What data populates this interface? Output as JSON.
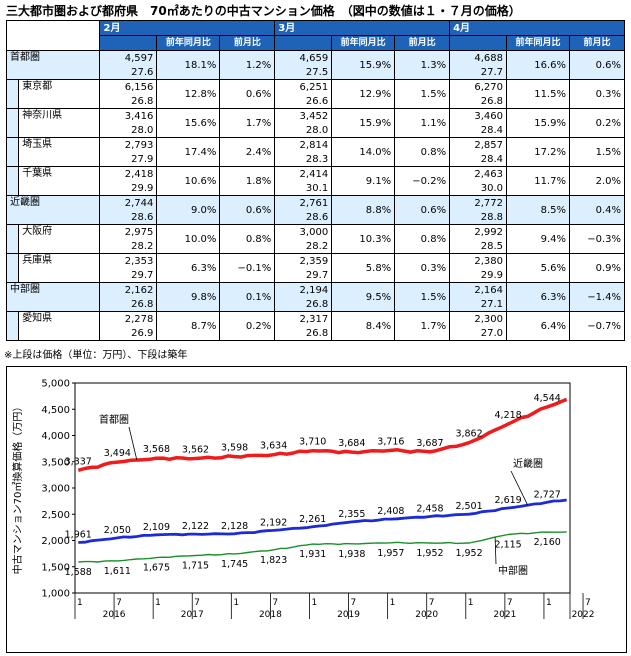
{
  "title": "三大都市圏および都府県　70㎡あたりの中古マンション価格　（図中の数値は１・７月の価格）",
  "table": {
    "months": [
      "2月",
      "3月",
      "4月"
    ],
    "col_yoy": "前年同月比",
    "col_mom": "前月比",
    "rows": [
      {
        "name": "首都圏",
        "type": "region",
        "vals": [
          [
            "4,597",
            "27.6",
            "18.1%",
            "1.2%"
          ],
          [
            "4,659",
            "27.5",
            "15.9%",
            "1.3%"
          ],
          [
            "4,688",
            "27.7",
            "16.6%",
            "0.6%"
          ]
        ]
      },
      {
        "name": "東京都",
        "type": "pref",
        "vals": [
          [
            "6,156",
            "26.8",
            "12.8%",
            "0.6%"
          ],
          [
            "6,251",
            "26.6",
            "12.9%",
            "1.5%"
          ],
          [
            "6,270",
            "26.8",
            "11.5%",
            "0.3%"
          ]
        ]
      },
      {
        "name": "神奈川県",
        "type": "pref",
        "vals": [
          [
            "3,416",
            "28.0",
            "15.6%",
            "1.7%"
          ],
          [
            "3,452",
            "28.0",
            "15.9%",
            "1.1%"
          ],
          [
            "3,460",
            "28.4",
            "15.9%",
            "0.2%"
          ]
        ]
      },
      {
        "name": "埼玉県",
        "type": "pref",
        "vals": [
          [
            "2,793",
            "27.9",
            "17.4%",
            "2.4%"
          ],
          [
            "2,814",
            "28.3",
            "14.0%",
            "0.8%"
          ],
          [
            "2,857",
            "28.4",
            "17.2%",
            "1.5%"
          ]
        ]
      },
      {
        "name": "千葉県",
        "type": "pref",
        "vals": [
          [
            "2,418",
            "29.9",
            "10.6%",
            "1.8%"
          ],
          [
            "2,414",
            "30.1",
            "9.1%",
            "−0.2%"
          ],
          [
            "2,463",
            "30.0",
            "11.7%",
            "2.0%"
          ]
        ]
      },
      {
        "name": "近畿圏",
        "type": "region",
        "vals": [
          [
            "2,744",
            "28.6",
            "9.0%",
            "0.6%"
          ],
          [
            "2,761",
            "28.6",
            "8.8%",
            "0.6%"
          ],
          [
            "2,772",
            "28.8",
            "8.5%",
            "0.4%"
          ]
        ]
      },
      {
        "name": "大阪府",
        "type": "pref",
        "vals": [
          [
            "2,975",
            "28.2",
            "10.0%",
            "0.8%"
          ],
          [
            "3,000",
            "28.2",
            "10.3%",
            "0.8%"
          ],
          [
            "2,992",
            "28.5",
            "9.4%",
            "−0.3%"
          ]
        ]
      },
      {
        "name": "兵庫県",
        "type": "pref",
        "vals": [
          [
            "2,353",
            "29.7",
            "6.3%",
            "−0.1%"
          ],
          [
            "2,359",
            "29.7",
            "5.8%",
            "0.3%"
          ],
          [
            "2,380",
            "29.9",
            "5.6%",
            "0.9%"
          ]
        ]
      },
      {
        "name": "中部圏",
        "type": "region",
        "vals": [
          [
            "2,162",
            "26.8",
            "9.8%",
            "0.1%"
          ],
          [
            "2,194",
            "26.8",
            "9.5%",
            "1.5%"
          ],
          [
            "2,164",
            "27.1",
            "6.3%",
            "−1.4%"
          ]
        ]
      },
      {
        "name": "愛知県",
        "type": "pref",
        "vals": [
          [
            "2,278",
            "26.9",
            "8.7%",
            "0.2%"
          ],
          [
            "2,317",
            "26.8",
            "8.4%",
            "1.7%"
          ],
          [
            "2,300",
            "27.0",
            "6.4%",
            "−0.7%"
          ]
        ]
      }
    ]
  },
  "footnote": "※上段は価格（単位：万円）、下段は築年",
  "chart_data": {
    "type": "line",
    "ylabel": "中古マンション70㎡換算価格（万円）",
    "ylim": [
      1000,
      5000
    ],
    "yticks": [
      "1,000",
      "1,500",
      "2,000",
      "2,500",
      "3,000",
      "3,500",
      "4,000",
      "4,500",
      "5,000"
    ],
    "x_month_labels": [
      "1",
      "7",
      "1",
      "7",
      "1",
      "7",
      "1",
      "7",
      "1",
      "7",
      "1",
      "7",
      "1",
      "7"
    ],
    "x_year_labels": [
      "2016",
      "2017",
      "2018",
      "2019",
      "2020",
      "2021",
      "2022"
    ],
    "x_range": [
      "2016-01",
      "2022-04"
    ],
    "series": [
      {
        "name": "首都圏",
        "color": "#ee1c1c",
        "labeled": [
          [
            "2016-01",
            3337
          ],
          [
            "2016-07",
            3494
          ],
          [
            "2017-01",
            3568
          ],
          [
            "2017-07",
            3562
          ],
          [
            "2018-01",
            3598
          ],
          [
            "2018-07",
            3634
          ],
          [
            "2019-01",
            3710
          ],
          [
            "2019-07",
            3684
          ],
          [
            "2020-01",
            3716
          ],
          [
            "2020-07",
            3687
          ],
          [
            "2021-01",
            3862
          ],
          [
            "2021-07",
            4218
          ],
          [
            "2022-01",
            4544
          ]
        ],
        "labels": [
          "3,337",
          "3,494",
          "3,568",
          "3,562",
          "3,598",
          "3,634",
          "3,710",
          "3,684",
          "3,716",
          "3,687",
          "3,862",
          "4,218",
          "4,544"
        ],
        "last": [
          "2022-04",
          4688
        ]
      },
      {
        "name": "近畿圏",
        "color": "#1c2bd6",
        "labeled": [
          [
            "2016-01",
            1961
          ],
          [
            "2016-07",
            2050
          ],
          [
            "2017-01",
            2109
          ],
          [
            "2017-07",
            2122
          ],
          [
            "2018-01",
            2128
          ],
          [
            "2018-07",
            2192
          ],
          [
            "2019-01",
            2261
          ],
          [
            "2019-07",
            2355
          ],
          [
            "2020-01",
            2408
          ],
          [
            "2020-07",
            2458
          ],
          [
            "2021-01",
            2501
          ],
          [
            "2021-07",
            2619
          ],
          [
            "2022-01",
            2727
          ]
        ],
        "labels": [
          "1,961",
          "2,050",
          "2,109",
          "2,122",
          "2,128",
          "2,192",
          "2,261",
          "2,355",
          "2,408",
          "2,458",
          "2,501",
          "2,619",
          "2,727"
        ],
        "last": [
          "2022-04",
          2772
        ]
      },
      {
        "name": "中部圏",
        "color": "#1a8f2a",
        "labeled": [
          [
            "2016-01",
            1588
          ],
          [
            "2016-07",
            1611
          ],
          [
            "2017-01",
            1675
          ],
          [
            "2017-07",
            1715
          ],
          [
            "2018-01",
            1745
          ],
          [
            "2018-07",
            1823
          ],
          [
            "2019-01",
            1931
          ],
          [
            "2019-07",
            1938
          ],
          [
            "2020-01",
            1957
          ],
          [
            "2020-07",
            1952
          ],
          [
            "2021-01",
            1952
          ],
          [
            "2021-07",
            2115
          ],
          [
            "2022-01",
            2160
          ]
        ],
        "labels": [
          "1,588",
          "1,611",
          "1,675",
          "1,715",
          "1,745",
          "1,823",
          "1,931",
          "1,938",
          "1,957",
          "1,952",
          "1,952",
          "2,115",
          "2,160"
        ],
        "last": [
          "2022-04",
          2164
        ]
      }
    ]
  }
}
